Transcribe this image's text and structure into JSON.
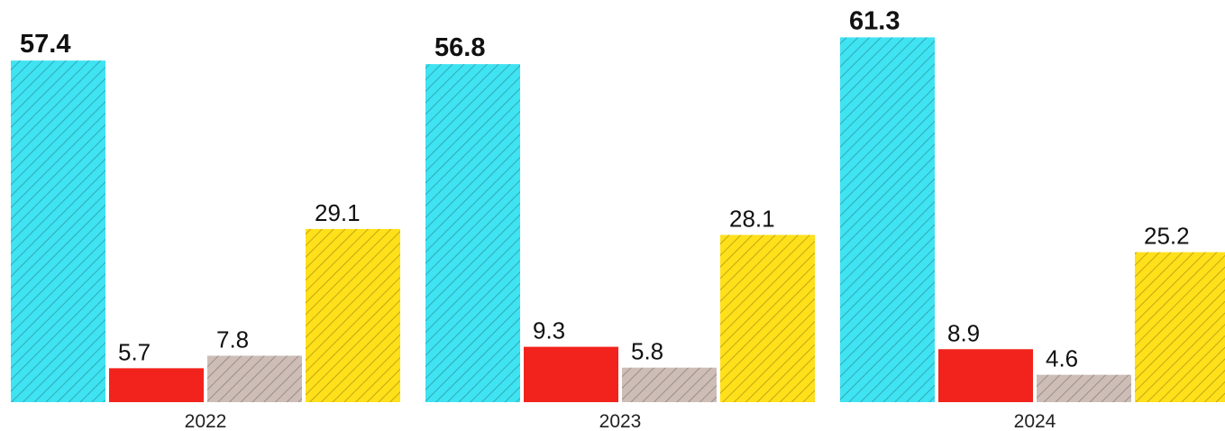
{
  "chart_data": {
    "type": "bar",
    "categories": [
      "2022",
      "2023",
      "2024"
    ],
    "series": [
      {
        "values": [
          57.4,
          56.8,
          61.3
        ],
        "color": "#3fe3f2",
        "hatch": true,
        "bold_label": true
      },
      {
        "values": [
          5.7,
          9.3,
          8.9
        ],
        "color": "#f2231c",
        "hatch": false,
        "bold_label": false
      },
      {
        "values": [
          7.8,
          5.8,
          4.6
        ],
        "color": "#cdbdb6",
        "hatch": true,
        "bold_label": false
      },
      {
        "values": [
          29.1,
          28.1,
          25.2
        ],
        "color": "#ffe01a",
        "hatch": true,
        "bold_label": false
      }
    ],
    "ylim": [
      0,
      62
    ],
    "grid": false,
    "legend": "none",
    "data_labels": true
  }
}
